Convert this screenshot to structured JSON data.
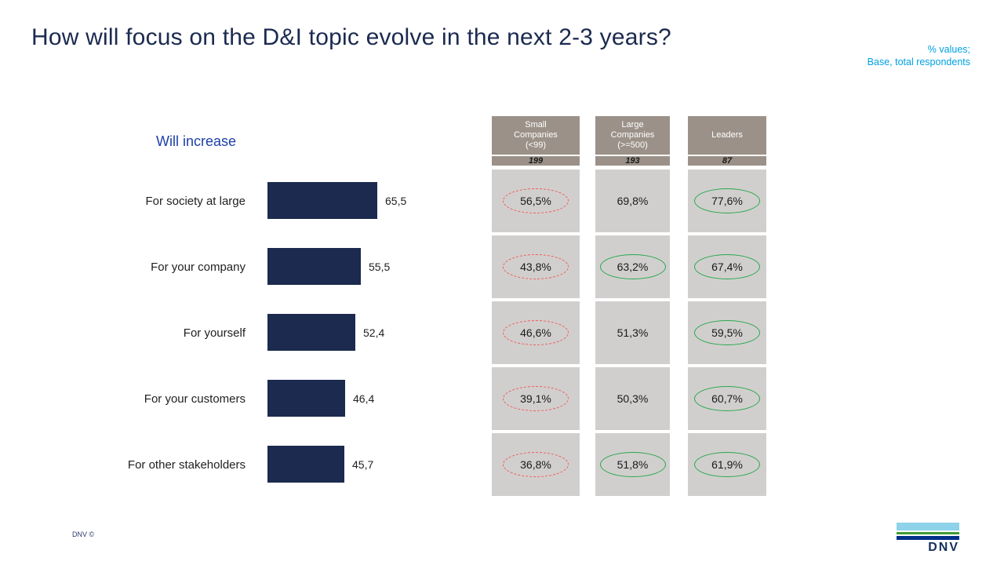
{
  "slide": {
    "title": "How will focus on the D&I topic evolve in the next 2-3 years?",
    "note": {
      "line1": "% values;",
      "line2": "Base, total respondents"
    },
    "footer_text": "DNV ©",
    "logo_text": "DNV"
  },
  "chart_data": {
    "type": "bar",
    "orientation": "horizontal",
    "title": "Will increase",
    "categories": [
      "For society at large",
      "For your company",
      "For yourself",
      "For your customers",
      "For other stakeholders"
    ],
    "values": [
      65.5,
      55.5,
      52.4,
      46.4,
      45.7
    ],
    "value_labels": [
      "65,5",
      "55,5",
      "52,4",
      "46,4",
      "45,7"
    ],
    "xlim": [
      0,
      100
    ],
    "grid": false,
    "legend": "none",
    "bar_color": "#1b2a4e"
  },
  "table": {
    "columns": [
      {
        "lines": [
          "Small",
          "Companies",
          "(<99)"
        ],
        "base": "199"
      },
      {
        "lines": [
          "Large",
          "Companies",
          "(>=500)"
        ],
        "base": "193"
      },
      {
        "lines": [
          "Leaders"
        ],
        "base": "87"
      }
    ],
    "rows": [
      {
        "category": "For society at large",
        "cells": [
          {
            "value": "56,5%",
            "mark": "red-dashed"
          },
          {
            "value": "69,8%",
            "mark": "none"
          },
          {
            "value": "77,6%",
            "mark": "green-solid"
          }
        ]
      },
      {
        "category": "For your company",
        "cells": [
          {
            "value": "43,8%",
            "mark": "red-dashed"
          },
          {
            "value": "63,2%",
            "mark": "green-solid"
          },
          {
            "value": "67,4%",
            "mark": "green-solid"
          }
        ]
      },
      {
        "category": "For yourself",
        "cells": [
          {
            "value": "46,6%",
            "mark": "red-dashed"
          },
          {
            "value": "51,3%",
            "mark": "none"
          },
          {
            "value": "59,5%",
            "mark": "green-solid"
          }
        ]
      },
      {
        "category": "For your customers",
        "cells": [
          {
            "value": "39,1%",
            "mark": "red-dashed"
          },
          {
            "value": "50,3%",
            "mark": "none"
          },
          {
            "value": "60,7%",
            "mark": "green-solid"
          }
        ]
      },
      {
        "category": "For other stakeholders",
        "cells": [
          {
            "value": "36,8%",
            "mark": "red-dashed"
          },
          {
            "value": "51,8%",
            "mark": "green-solid"
          },
          {
            "value": "61,9%",
            "mark": "green-solid"
          }
        ]
      }
    ]
  },
  "colors": {
    "title_text": "#1b2a50",
    "chart_title_text": "#1e3fa7",
    "bar": "#1b2a4e",
    "note_text": "#00a0e0",
    "table_header_bg": "#9b9189",
    "table_cell_bg": "#d1cfce",
    "mark_red": "#ee5a56",
    "mark_green": "#28a84c",
    "logo_light_blue": "#8ed3ea",
    "logo_green": "#3f9c35",
    "logo_navy": "#003189"
  }
}
